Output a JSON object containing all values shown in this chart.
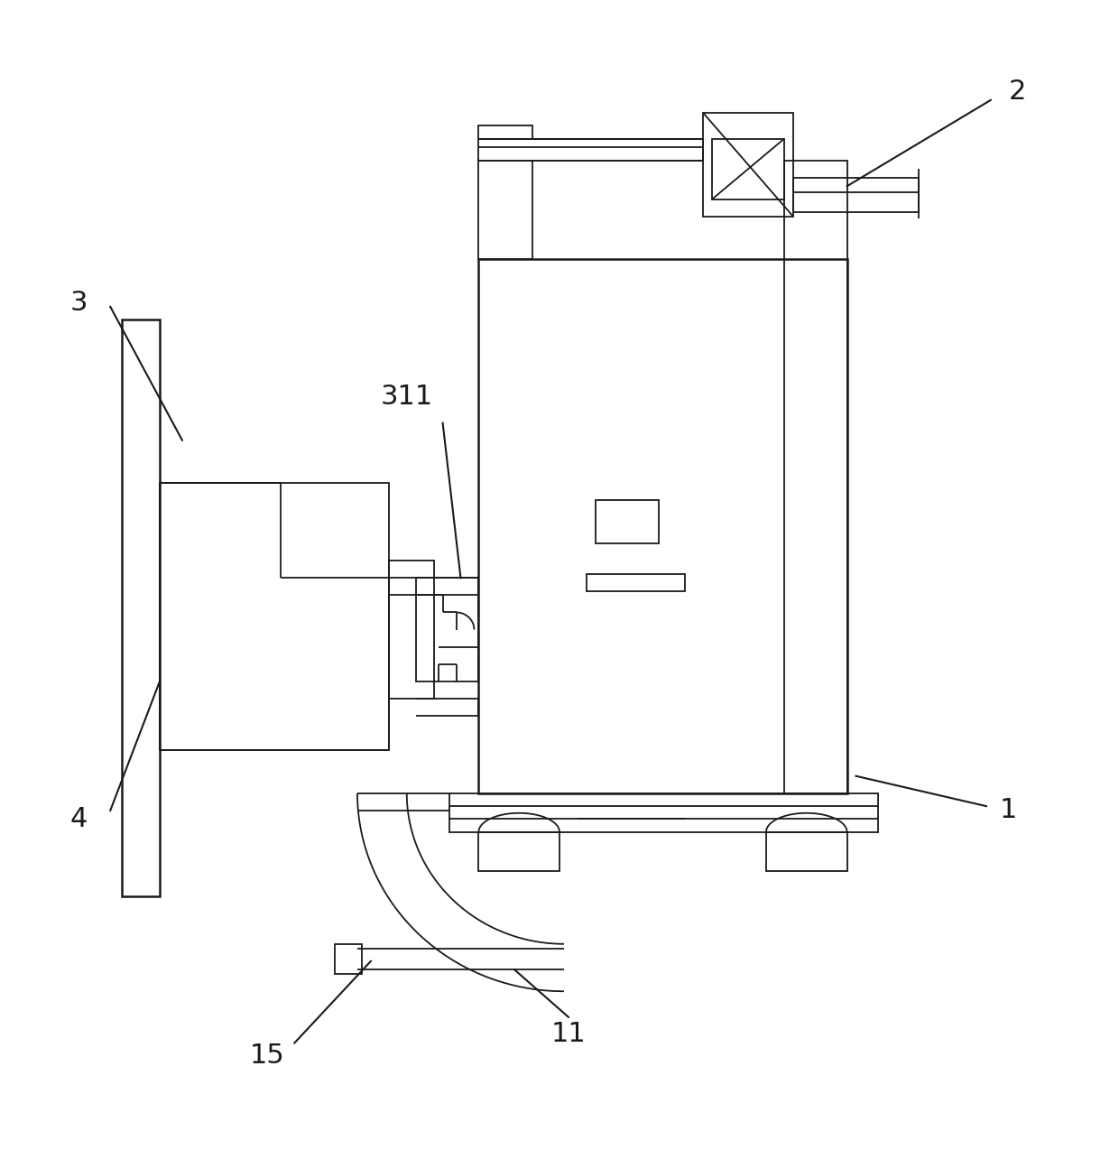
{
  "bg_color": "#ffffff",
  "line_color": "#1a1a1a",
  "lw": 1.3,
  "lw2": 1.8,
  "label_fontsize": 22,
  "fig_w": 12.4,
  "fig_h": 12.94,
  "dpi": 100
}
